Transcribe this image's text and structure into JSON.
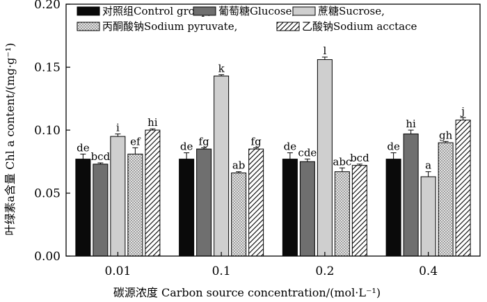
{
  "chart_data": {
    "type": "bar",
    "title": "",
    "xlabel": "碳源浓度 Carbon source concentration/(mol·L⁻¹)",
    "ylabel": "叶绿素a含量 Chl a content/(mg·g⁻¹)",
    "ylim": [
      0,
      0.2
    ],
    "yticks": [
      "0.00",
      "0.05",
      "0.10",
      "0.15",
      "0.20"
    ],
    "categories": [
      "0.01",
      "0.1",
      "0.2",
      "0.4"
    ],
    "legend_position": "top",
    "series": [
      {
        "name": "对照组Control group,",
        "pattern": "solid-black",
        "values": [
          0.077,
          0.077,
          0.077,
          0.077
        ],
        "errors": [
          0.004,
          0.005,
          0.005,
          0.005
        ],
        "labels": [
          "de",
          "de",
          "de",
          "de"
        ]
      },
      {
        "name": "葡萄糖Glucose,",
        "pattern": "solid-gray",
        "values": [
          0.073,
          0.085,
          0.075,
          0.097
        ],
        "errors": [
          0.001,
          0.001,
          0.002,
          0.003
        ],
        "labels": [
          "bcd",
          "fg",
          "cde",
          "hi"
        ]
      },
      {
        "name": "蔗糖Sucrose,",
        "pattern": "light-gray",
        "values": [
          0.095,
          0.143,
          0.156,
          0.063
        ],
        "errors": [
          0.002,
          0.001,
          0.002,
          0.004
        ],
        "labels": [
          "i",
          "k",
          "l",
          "a"
        ]
      },
      {
        "name": "丙酮酸钠Sodium pyruvate,",
        "pattern": "dotted",
        "values": [
          0.081,
          0.066,
          0.067,
          0.09
        ],
        "errors": [
          0.005,
          0.001,
          0.003,
          0.001
        ],
        "labels": [
          "ef",
          "ab",
          "abc",
          "gh"
        ]
      },
      {
        "name": "乙酸钠Sodium acctace",
        "pattern": "hatched",
        "values": [
          0.1,
          0.085,
          0.072,
          0.108
        ],
        "errors": [
          0.001,
          0.001,
          0.001,
          0.002
        ],
        "labels": [
          "hi",
          "fg",
          "bcd",
          "j"
        ]
      }
    ]
  },
  "colors": {
    "solid_black": "#0a0a0a",
    "solid_gray": "#6f6f6f",
    "light_gray": "#cfcfcf",
    "dotted_bg": "#e4e4e4",
    "axis": "#000000"
  }
}
